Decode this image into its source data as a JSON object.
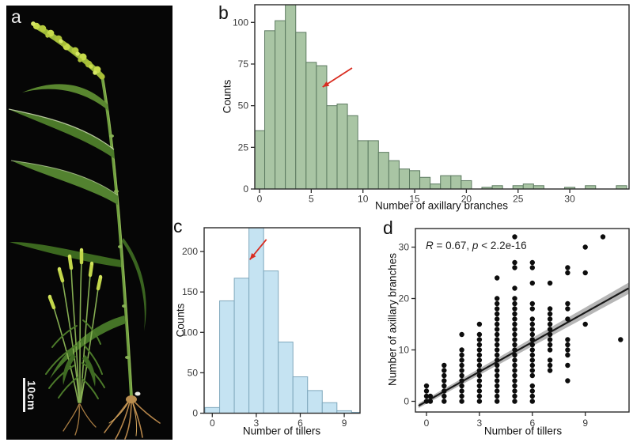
{
  "panel_a": {
    "label": "a",
    "scale_bar_text": "10cm"
  },
  "colors": {
    "hist_b_fill": "#a9c5a4",
    "hist_b_stroke": "#5c7a60",
    "hist_c_fill": "#c5e3f2",
    "hist_c_stroke": "#7fa8bd",
    "arrow_red": "#d92c20",
    "scatter_point": "#0d0d0d",
    "regression_line": "#1a1a1a",
    "ci_band": "#9e9e9e",
    "axis": "#2b2b2b",
    "tick_label": "#3c3c3c"
  },
  "chart_data": [
    {
      "type": "bar",
      "panel_label": "b",
      "xlabel": "Number of axillary branches",
      "ylabel": "Counts",
      "categories": [
        0,
        1,
        2,
        3,
        4,
        5,
        6,
        7,
        8,
        9,
        10,
        11,
        12,
        13,
        14,
        15,
        16,
        17,
        18,
        19,
        20,
        21,
        22,
        23,
        24,
        25,
        26,
        27,
        28,
        29,
        30,
        31,
        32,
        33,
        34,
        35
      ],
      "values": [
        35,
        95,
        101,
        112,
        94,
        76,
        74,
        50,
        51,
        44,
        29,
        29,
        22,
        17,
        12,
        11,
        7,
        3,
        8,
        8,
        5,
        0,
        1,
        2,
        0,
        2,
        3,
        2,
        0,
        0,
        1,
        0,
        2,
        0,
        0,
        2
      ],
      "xticks": [
        0,
        5,
        10,
        15,
        20,
        25,
        30
      ],
      "yticks": [
        0,
        25,
        50,
        75,
        100
      ],
      "xlim": [
        -0.6,
        35.7
      ],
      "ylim": [
        0,
        110.5
      ],
      "bar_fill": "#a9c5a4",
      "bar_stroke": "#5c7a60",
      "arrow": {
        "tail": [
          8.95,
          72.6
        ],
        "tip": [
          6.1,
          61.2
        ]
      }
    },
    {
      "type": "bar",
      "panel_label": "c",
      "xlabel": "Number of tillers",
      "ylabel": "Counts",
      "categories": [
        0,
        1,
        2,
        3,
        4,
        5,
        6,
        7,
        8,
        9,
        10
      ],
      "values": [
        7,
        139,
        167,
        234,
        176,
        88,
        45,
        28,
        13,
        3,
        1
      ],
      "xticks": [
        0,
        3,
        6,
        9
      ],
      "yticks": [
        0,
        50,
        100,
        150,
        200
      ],
      "xlim": [
        -0.55,
        10.1
      ],
      "ylim": [
        0,
        229.5
      ],
      "bar_fill": "#c5e3f2",
      "bar_stroke": "#7fa8bd",
      "arrow": {
        "tail": [
          3.69,
          215
        ],
        "tip": [
          2.56,
          190
        ]
      }
    },
    {
      "type": "scatter",
      "panel_label": "d",
      "xlabel": "Number of tillers",
      "ylabel": "Number of axillary branches",
      "xticks": [
        0,
        3,
        6,
        9
      ],
      "yticks": [
        0,
        10,
        20,
        30
      ],
      "xlim": [
        -0.6,
        11.5
      ],
      "ylim": [
        -1.8,
        33.5
      ],
      "annotation": {
        "r_symbol": "R",
        "r_rest": " = 0.67, ",
        "p_symbol": "p",
        "p_rest": " < 2.2e-16"
      },
      "regression": {
        "slope": 1.92,
        "intercept": 0.0,
        "x_start": -0.45,
        "x_end": 11.45,
        "ci_halfwidth_start": 0.45,
        "ci_halfwidth_end": 1.1
      },
      "columns": [
        {
          "x": 0,
          "ys": [
            0,
            1,
            2,
            3
          ]
        },
        {
          "x": 1,
          "ys": [
            0,
            1,
            2,
            3,
            4,
            5,
            6,
            7
          ]
        },
        {
          "x": 2,
          "ys": [
            0,
            1,
            2,
            3,
            4,
            5,
            6,
            7,
            8,
            9,
            10,
            13
          ]
        },
        {
          "x": 3,
          "ys": [
            0,
            1,
            2,
            3,
            4,
            5,
            6,
            7,
            8,
            9,
            10,
            11,
            12,
            13,
            15
          ]
        },
        {
          "x": 4,
          "ys": [
            0,
            1,
            2,
            3,
            4,
            5,
            6,
            7,
            8,
            9,
            10,
            11,
            12,
            13,
            14,
            15,
            16,
            17,
            18,
            19,
            20,
            24
          ]
        },
        {
          "x": 5,
          "ys": [
            0,
            1,
            2,
            3,
            4,
            5,
            6,
            7,
            8,
            9,
            10,
            11,
            12,
            13,
            14,
            15,
            16,
            17,
            18,
            19,
            20,
            22,
            26,
            27,
            32
          ]
        },
        {
          "x": 6,
          "ys": [
            0,
            1,
            2,
            3,
            5,
            6,
            7,
            8,
            9,
            10,
            11,
            12,
            13,
            14,
            15,
            16,
            18,
            19,
            23,
            26,
            27
          ]
        },
        {
          "x": 7,
          "ys": [
            6,
            7,
            8,
            10,
            11,
            12,
            13,
            14,
            15,
            16,
            17,
            18,
            23
          ]
        },
        {
          "x": 8,
          "ys": [
            4,
            7,
            9,
            10,
            11,
            12,
            16,
            18,
            19,
            25,
            26
          ]
        },
        {
          "x": 9,
          "ys": [
            15,
            25,
            30
          ]
        },
        {
          "x": 10,
          "ys": [
            32
          ]
        },
        {
          "x": 11,
          "ys": [
            12
          ]
        }
      ],
      "extra_points": [
        [
          0.22,
          0
        ],
        [
          0.22,
          1
        ]
      ]
    }
  ]
}
